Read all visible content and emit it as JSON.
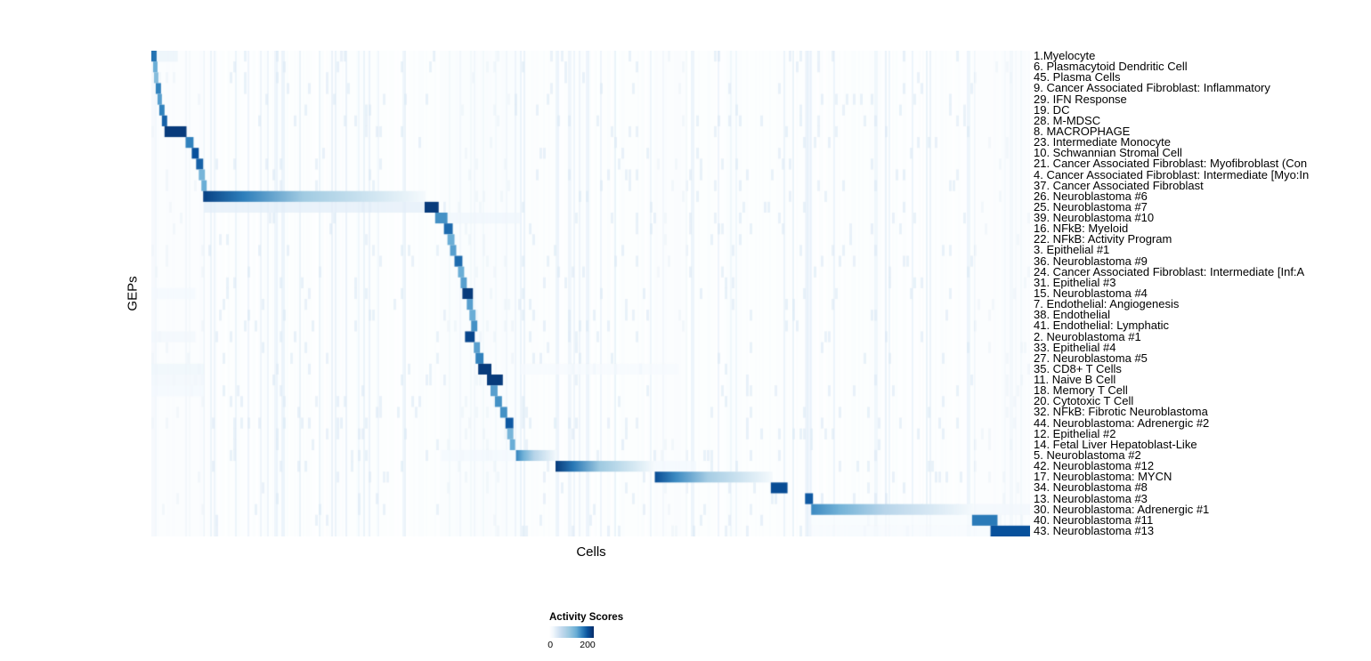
{
  "chart_data": {
    "type": "heatmap",
    "title": "",
    "xlabel": "Cells",
    "ylabel": "GEPs",
    "legend_position": "bottom",
    "grid": false,
    "x_tick_labels_shown": false,
    "colorbar": {
      "title": "Activity Scores",
      "min": 0,
      "max": 200,
      "scale_anchors": [
        [
          0,
          "#ffffff"
        ],
        [
          20,
          "#eff6fc"
        ],
        [
          60,
          "#c6dbef"
        ],
        [
          100,
          "#9ecae1"
        ],
        [
          140,
          "#6baed6"
        ],
        [
          170,
          "#3182bd"
        ],
        [
          200,
          "#08519c"
        ],
        [
          230,
          "#08306b"
        ]
      ]
    },
    "rows": [
      "1.Myelocyte",
      "6. Plasmacytoid Dendritic Cell",
      "45. Plasma Cells",
      "9. Cancer Associated Fibroblast: Inflammatory",
      "29. IFN Response",
      "19. DC",
      "28. M-MDSC",
      "8. MACROPHAGE",
      "23. Intermediate Monocyte",
      "10. Schwannian Stromal Cell",
      "21. Cancer Associated Fibroblast: Myofibroblast (Con",
      "4. Cancer Associated Fibroblast: Intermediate [Myo:In",
      "37. Cancer Associated Fibroblast",
      "26. Neuroblastoma #6",
      "25. Neuroblastoma #7",
      "39. Neuroblastoma #10",
      "16. NFkB: Myeloid",
      "22. NFkB: Activity Program",
      "3. Epithelial #1",
      "36. Neuroblastoma #9",
      "24. Cancer Associated Fibroblast: Intermediate [Inf:A",
      "31. Epithelial #3",
      "15. Neuroblastoma #4",
      "7. Endothelial: Angiogenesis",
      "38. Endothelial",
      "41. Endothelial: Lymphatic",
      "2. Neuroblastoma #1",
      "33. Epithelial #4",
      "27. Neuroblastoma #5",
      "35. CD8+ T Cells",
      "11. Naive B Cell",
      "18. Memory T Cell",
      "20. Cytotoxic T Cell",
      "32. NFkB: Fibrotic Neuroblastoma",
      "44. Neuroblastoma: Adrenergic #2",
      "12. Epithelial #2",
      "14. Fetal Liver Hepatoblast-Like",
      "5. Neuroblastoma #2",
      "42. Neuroblastoma #12",
      "17. Neuroblastoma: MYCN",
      "34. Neuroblastoma #8",
      "13. Neuroblastoma #3",
      "30. Neuroblastoma: Adrenergic #1",
      "40. Neuroblastoma #11",
      "43. Neuroblastoma #13"
    ],
    "blocks": [
      {
        "r": 0,
        "x0": 0.0,
        "x1": 0.006,
        "p": 180
      },
      {
        "r": 1,
        "x0": 0.002,
        "x1": 0.007,
        "p": 140
      },
      {
        "r": 2,
        "x0": 0.003,
        "x1": 0.008,
        "p": 120
      },
      {
        "r": 3,
        "x0": 0.005,
        "x1": 0.011,
        "p": 170
      },
      {
        "r": 4,
        "x0": 0.007,
        "x1": 0.012,
        "p": 150
      },
      {
        "r": 5,
        "x0": 0.009,
        "x1": 0.015,
        "p": 170
      },
      {
        "r": 6,
        "x0": 0.012,
        "x1": 0.018,
        "p": 190
      },
      {
        "r": 7,
        "x0": 0.015,
        "x1": 0.04,
        "p": 220
      },
      {
        "r": 8,
        "x0": 0.039,
        "x1": 0.048,
        "p": 170
      },
      {
        "r": 9,
        "x0": 0.046,
        "x1": 0.054,
        "p": 200
      },
      {
        "r": 10,
        "x0": 0.051,
        "x1": 0.059,
        "p": 190
      },
      {
        "r": 11,
        "x0": 0.054,
        "x1": 0.061,
        "p": 130
      },
      {
        "r": 12,
        "x0": 0.057,
        "x1": 0.063,
        "p": 140
      },
      {
        "r": 13,
        "x0": 0.059,
        "x1": 0.312,
        "p": 215,
        "fade": true
      },
      {
        "r": 14,
        "x0": 0.311,
        "x1": 0.327,
        "p": 220
      },
      {
        "r": 15,
        "x0": 0.323,
        "x1": 0.337,
        "p": 160
      },
      {
        "r": 16,
        "x0": 0.333,
        "x1": 0.343,
        "p": 185
      },
      {
        "r": 17,
        "x0": 0.337,
        "x1": 0.345,
        "p": 140
      },
      {
        "r": 18,
        "x0": 0.34,
        "x1": 0.347,
        "p": 150
      },
      {
        "r": 19,
        "x0": 0.345,
        "x1": 0.354,
        "p": 185
      },
      {
        "r": 20,
        "x0": 0.349,
        "x1": 0.356,
        "p": 140
      },
      {
        "r": 21,
        "x0": 0.352,
        "x1": 0.359,
        "p": 150
      },
      {
        "r": 22,
        "x0": 0.354,
        "x1": 0.366,
        "p": 220
      },
      {
        "r": 23,
        "x0": 0.359,
        "x1": 0.366,
        "p": 150
      },
      {
        "r": 24,
        "x0": 0.362,
        "x1": 0.369,
        "p": 140
      },
      {
        "r": 25,
        "x0": 0.364,
        "x1": 0.371,
        "p": 160
      },
      {
        "r": 26,
        "x0": 0.357,
        "x1": 0.368,
        "p": 210
      },
      {
        "r": 27,
        "x0": 0.367,
        "x1": 0.374,
        "p": 150
      },
      {
        "r": 28,
        "x0": 0.369,
        "x1": 0.378,
        "p": 170
      },
      {
        "r": 29,
        "x0": 0.372,
        "x1": 0.387,
        "p": 220
      },
      {
        "r": 30,
        "x0": 0.382,
        "x1": 0.4,
        "p": 220
      },
      {
        "r": 31,
        "x0": 0.386,
        "x1": 0.394,
        "p": 150
      },
      {
        "r": 32,
        "x0": 0.391,
        "x1": 0.399,
        "p": 160
      },
      {
        "r": 33,
        "x0": 0.397,
        "x1": 0.405,
        "p": 160
      },
      {
        "r": 34,
        "x0": 0.403,
        "x1": 0.412,
        "p": 195
      },
      {
        "r": 35,
        "x0": 0.405,
        "x1": 0.412,
        "p": 130
      },
      {
        "r": 36,
        "x0": 0.408,
        "x1": 0.414,
        "p": 140
      },
      {
        "r": 37,
        "x0": 0.415,
        "x1": 0.461,
        "p": 170,
        "fade": true
      },
      {
        "r": 38,
        "x0": 0.46,
        "x1": 0.572,
        "p": 220,
        "fade": true
      },
      {
        "r": 39,
        "x0": 0.573,
        "x1": 0.707,
        "p": 205,
        "fade": true
      },
      {
        "r": 40,
        "x0": 0.705,
        "x1": 0.724,
        "p": 205
      },
      {
        "r": 41,
        "x0": 0.744,
        "x1": 0.753,
        "p": 195
      },
      {
        "r": 42,
        "x0": 0.751,
        "x1": 0.936,
        "p": 165,
        "fade": true
      },
      {
        "r": 43,
        "x0": 0.934,
        "x1": 0.963,
        "p": 175
      },
      {
        "r": 44,
        "x0": 0.955,
        "x1": 1.0,
        "p": 200
      }
    ],
    "row_tints": [
      {
        "r": 0,
        "x0": 0.006,
        "x1": 0.03,
        "v": 25
      },
      {
        "r": 14,
        "x0": 0.06,
        "x1": 0.311,
        "v": 32
      },
      {
        "r": 15,
        "x0": 0.337,
        "x1": 0.42,
        "v": 20
      },
      {
        "r": 22,
        "x0": 0.0,
        "x1": 0.05,
        "v": 15
      },
      {
        "r": 26,
        "x0": 0.0,
        "x1": 0.05,
        "v": 18
      },
      {
        "r": 29,
        "x0": 0.0,
        "x1": 0.06,
        "v": 22
      },
      {
        "r": 29,
        "x0": 0.42,
        "x1": 0.6,
        "v": 12
      },
      {
        "r": 30,
        "x0": 0.0,
        "x1": 0.06,
        "v": 18
      },
      {
        "r": 31,
        "x0": 0.0,
        "x1": 0.06,
        "v": 15
      },
      {
        "r": 37,
        "x0": 0.33,
        "x1": 0.415,
        "v": 15
      },
      {
        "r": 38,
        "x0": 0.572,
        "x1": 0.62,
        "v": 15
      },
      {
        "r": 42,
        "x0": 0.936,
        "x1": 1.0,
        "v": 18
      },
      {
        "r": 43,
        "x0": 0.75,
        "x1": 0.934,
        "v": 10
      },
      {
        "r": 44,
        "x0": 0.75,
        "x1": 0.955,
        "v": 12
      }
    ],
    "col_bands": [
      {
        "x0": 0.0,
        "x1": 0.004,
        "v": 30
      },
      {
        "x0": 0.0,
        "x1": 0.06,
        "v": 6
      },
      {
        "x0": 0.335,
        "x1": 0.412,
        "v": 9
      },
      {
        "x0": 0.575,
        "x1": 0.61,
        "v": 6
      },
      {
        "x0": 0.7455,
        "x1": 0.7505,
        "v": 30
      },
      {
        "x0": 0.937,
        "x1": 1.0,
        "v": 7
      }
    ]
  }
}
